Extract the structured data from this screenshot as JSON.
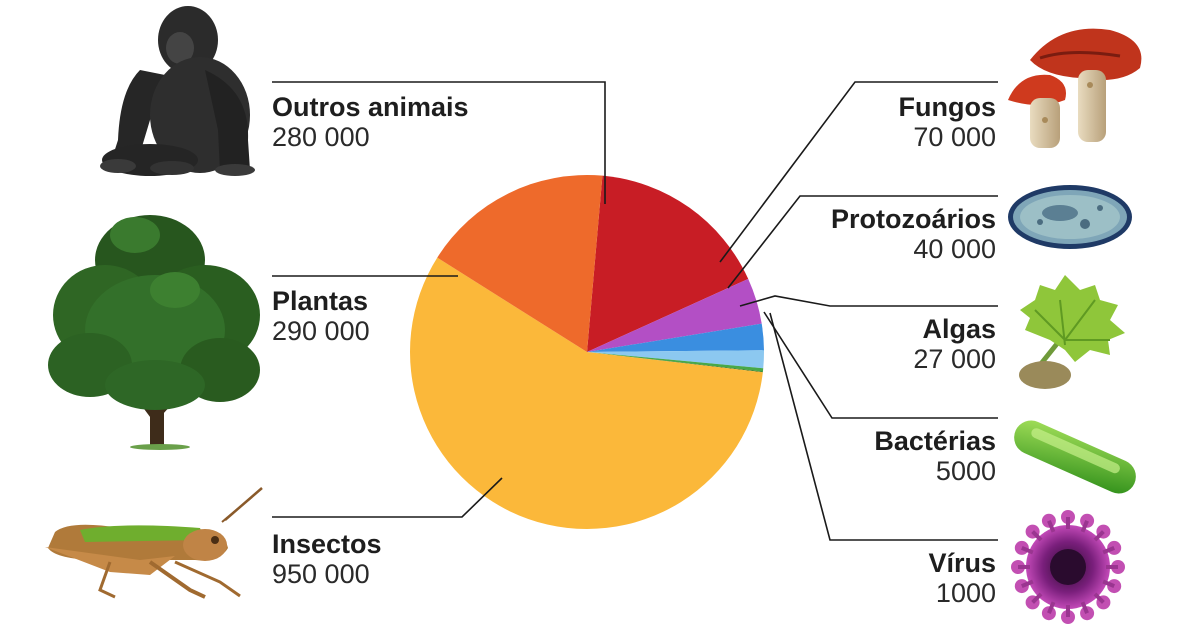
{
  "chart_data": {
    "type": "pie",
    "slices": [
      {
        "name": "Outros animais",
        "value_label": "280 000",
        "value": 280000,
        "color": "#c81d25",
        "icon": "gorilla-illustration"
      },
      {
        "name": "Fungos",
        "value_label": "70 000",
        "value": 70000,
        "color": "#b34fc5",
        "icon": "mushroom-illustration"
      },
      {
        "name": "Protozoários",
        "value_label": "40 000",
        "value": 40000,
        "color": "#3a8ee0",
        "icon": "protozoan-illustration"
      },
      {
        "name": "Algas",
        "value_label": "27 000",
        "value": 27000,
        "color": "#8cc8f0",
        "icon": "algae-illustration"
      },
      {
        "name": "Bactérias",
        "value_label": "5000",
        "value": 5000,
        "color": "#48a848",
        "icon": "bacterium-illustration"
      },
      {
        "name": "Vírus",
        "value_label": "1000",
        "value": 1000,
        "color": "#2f6e2a",
        "icon": "virus-illustration"
      },
      {
        "name": "Insectos",
        "value_label": "950 000",
        "value": 950000,
        "color": "#fbb83a",
        "icon": "grasshopper-illustration"
      },
      {
        "name": "Plantas",
        "value_label": "290 000",
        "value": 290000,
        "color": "#ee6a2b",
        "icon": "tree-illustration"
      }
    ]
  }
}
